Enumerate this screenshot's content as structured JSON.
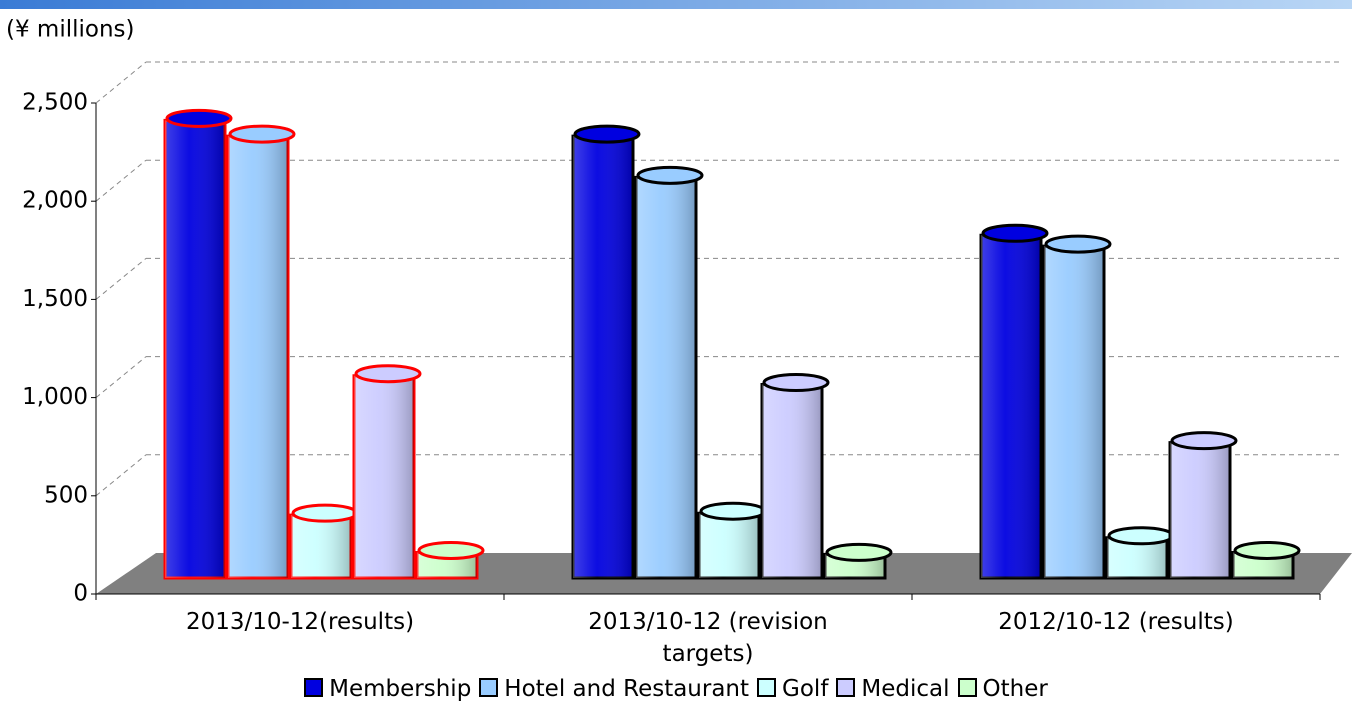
{
  "chart_data": {
    "type": "bar3d",
    "y_axis_label": "(¥ millions)",
    "categories": [
      "2013/10-12(results)",
      "2013/10-12 (revision targets)",
      "2012/10-12 (results)"
    ],
    "series": [
      {
        "name": "Membership",
        "color": "#0000e0",
        "values": [
          2330,
          2250,
          1745
        ]
      },
      {
        "name": "Hotel and Restaurant",
        "color": "#99ccff",
        "values": [
          2250,
          2040,
          1690
        ]
      },
      {
        "name": "Golf",
        "color": "#ccffff",
        "values": [
          320,
          330,
          205
        ]
      },
      {
        "name": "Medical",
        "color": "#ccccff",
        "values": [
          1030,
          985,
          689
        ]
      },
      {
        "name": "Other",
        "color": "#ccffcc",
        "values": [
          130,
          120,
          130
        ]
      }
    ],
    "ylim": [
      0,
      2500
    ],
    "yticks": [
      0,
      {
        "value": 500,
        "label": "500"
      },
      {
        "value": 1000,
        "label": "1,000"
      },
      {
        "value": 1500,
        "label": "1,500"
      },
      {
        "value": 2000,
        "label": "2,000"
      },
      {
        "value": 2500,
        "label": "2,500"
      }
    ],
    "grid": true,
    "highlight_index": 0,
    "highlight_color": "#ff0000",
    "legend": "bottom"
  }
}
